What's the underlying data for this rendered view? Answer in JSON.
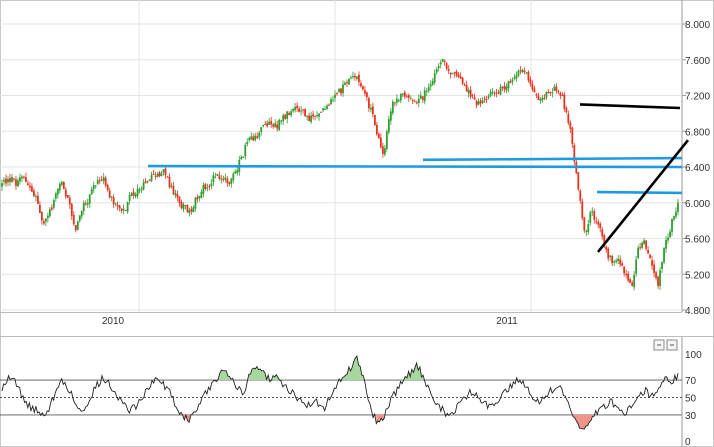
{
  "chart_data": [
    {
      "type": "candlestick",
      "x_ticks": [
        "2010",
        "2011"
      ],
      "y_ticks": [
        "8.000",
        "7.600",
        "7.200",
        "6.800",
        "6.400",
        "6.000",
        "5.600",
        "5.200",
        "4.800"
      ],
      "ylim": [
        4.8,
        8.0
      ],
      "grid": true,
      "colors": {
        "up": "#2e9e2e",
        "down": "#e8321e",
        "blue_line": "#1e9be0",
        "black_line": "#000000"
      },
      "series": [
        {
          "values": [
            6.2,
            6.28,
            6.22,
            6.27,
            6.18,
            6.05,
            5.78,
            5.85,
            6.1,
            6.24,
            5.98,
            5.7,
            5.96,
            6.05,
            6.22,
            6.3,
            6.1,
            5.95,
            5.88,
            6.05,
            6.14,
            6.2,
            6.28,
            6.3,
            6.36,
            6.22,
            6.05,
            5.95,
            5.9,
            6.05,
            6.18,
            6.22,
            6.3,
            6.25,
            6.22,
            6.35,
            6.55,
            6.7,
            6.75,
            6.85,
            6.9,
            6.85,
            6.95,
            7.0,
            7.05,
            7.02,
            6.95,
            7.0,
            7.05,
            7.12,
            7.2,
            7.3,
            7.38,
            7.42,
            7.3,
            7.05,
            6.8,
            6.52,
            7.05,
            7.15,
            7.22,
            7.18,
            7.1,
            7.2,
            7.35,
            7.5,
            7.58,
            7.45,
            7.4,
            7.3,
            7.2,
            7.1,
            7.15,
            7.2,
            7.25,
            7.3,
            7.35,
            7.42,
            7.5,
            7.3,
            7.15,
            7.2,
            7.25,
            7.3,
            7.1,
            6.8,
            6.2,
            5.65,
            5.9,
            5.8,
            5.5,
            5.35,
            5.4,
            5.2,
            5.05,
            5.45,
            5.6,
            5.3,
            5.1,
            5.5,
            5.75,
            6.0
          ]
        }
      ]
    },
    {
      "type": "line",
      "y_ticks": [
        "100",
        "70",
        "50",
        "30",
        "0"
      ],
      "ylim": [
        0,
        100
      ],
      "levels": [
        70,
        50,
        30
      ],
      "fill_colors": {
        "above": "#a8d8a0",
        "below": "#f2948a"
      },
      "series": [
        {
          "values": [
            62,
            73,
            68,
            52,
            40,
            36,
            30,
            38,
            55,
            70,
            60,
            42,
            33,
            48,
            62,
            72,
            66,
            55,
            44,
            35,
            40,
            52,
            63,
            70,
            66,
            58,
            40,
            30,
            24,
            36,
            50,
            60,
            72,
            82,
            78,
            64,
            52,
            76,
            88,
            80,
            70,
            73,
            64,
            58,
            50,
            46,
            40,
            45,
            36,
            50,
            64,
            76,
            82,
            96,
            72,
            40,
            20,
            28,
            46,
            58,
            70,
            78,
            88,
            72,
            54,
            42,
            34,
            30,
            40,
            48,
            56,
            52,
            44,
            38,
            46,
            56,
            64,
            72,
            66,
            54,
            46,
            50,
            58,
            64,
            52,
            38,
            18,
            12,
            24,
            34,
            40,
            46,
            38,
            32,
            40,
            52,
            58,
            52,
            62,
            70,
            68,
            76
          ]
        }
      ]
    }
  ]
}
